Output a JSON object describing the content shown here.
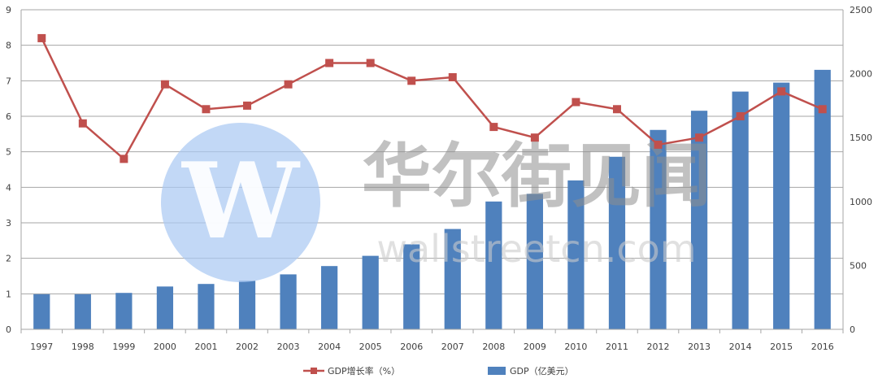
{
  "chart_data": {
    "type": "bar",
    "categories": [
      "1997",
      "1998",
      "1999",
      "2000",
      "2001",
      "2002",
      "2003",
      "2004",
      "2005",
      "2006",
      "2007",
      "2008",
      "2009",
      "2010",
      "2011",
      "2012",
      "2013",
      "2014",
      "2015",
      "2016"
    ],
    "series": [
      {
        "name": "GDP（亿美元）",
        "type": "bar",
        "axis": "right",
        "color": "#4f81bd",
        "values": [
          275,
          275,
          285,
          335,
          355,
          380,
          430,
          495,
          575,
          665,
          785,
          1000,
          1060,
          1165,
          1350,
          1560,
          1710,
          1860,
          1930,
          2030
        ]
      },
      {
        "name": "GDP增长率（%）",
        "type": "line",
        "axis": "left",
        "color": "#c0504d",
        "values": [
          8.2,
          5.8,
          4.8,
          6.9,
          6.2,
          6.3,
          6.9,
          7.5,
          7.5,
          7.0,
          7.1,
          5.7,
          5.4,
          6.4,
          6.2,
          5.2,
          5.4,
          6.0,
          6.7,
          6.2
        ]
      }
    ],
    "y_left": {
      "ylim": [
        0,
        9
      ],
      "ticks": [
        "0",
        "1",
        "2",
        "3",
        "4",
        "5",
        "6",
        "7",
        "8",
        "9"
      ]
    },
    "y_right": {
      "ylim": [
        0,
        2500
      ],
      "ticks": [
        "0",
        "500",
        "1000",
        "1500",
        "2000",
        "2500"
      ]
    },
    "grid": true,
    "legend_position": "bottom-center"
  },
  "watermark": {
    "logo_letter": "W",
    "text": "华尔街见闻",
    "subtext": "wallstreetcn.com"
  },
  "colors": {
    "bar": "#4f81bd",
    "line": "#c0504d",
    "grid": "#a6a6a6",
    "axis_text": "#404040"
  }
}
